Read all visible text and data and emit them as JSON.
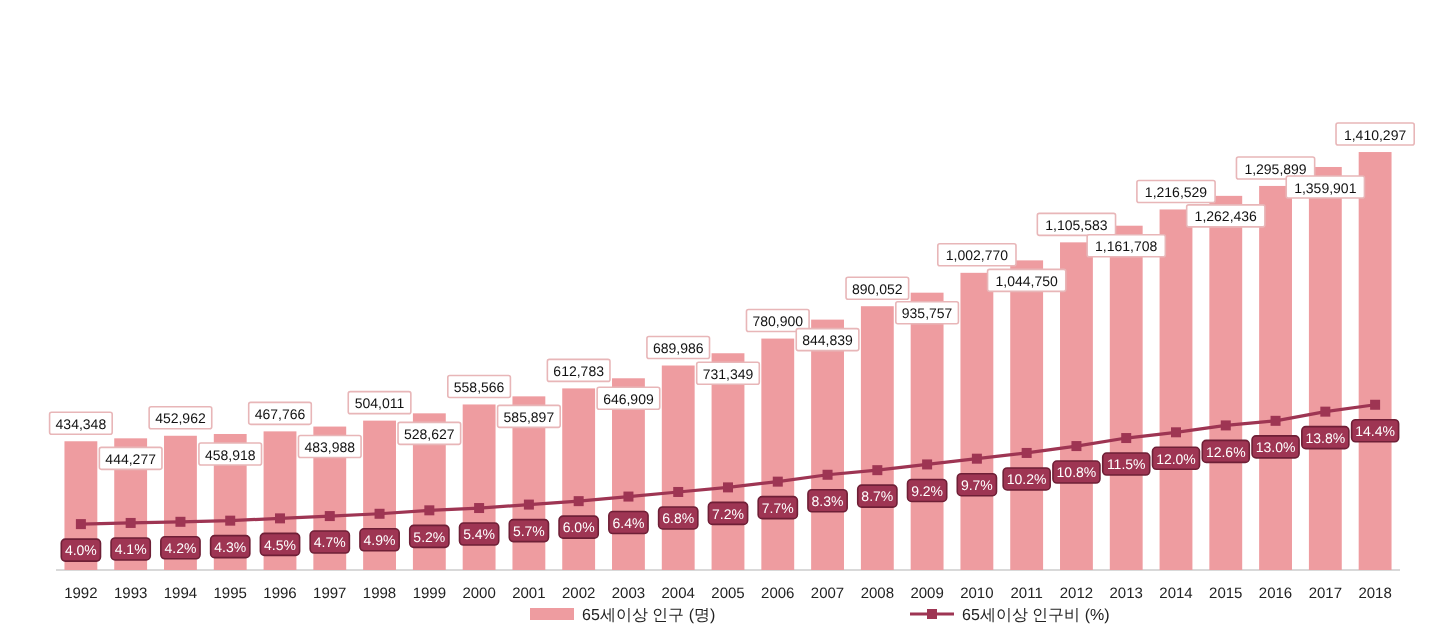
{
  "chart_data": {
    "type": "bar",
    "categories": [
      "1992",
      "1993",
      "1994",
      "1995",
      "1996",
      "1997",
      "1998",
      "1999",
      "2000",
      "2001",
      "2002",
      "2003",
      "2004",
      "2005",
      "2006",
      "2007",
      "2008",
      "2009",
      "2010",
      "2011",
      "2012",
      "2013",
      "2014",
      "2015",
      "2016",
      "2017",
      "2018"
    ],
    "series": [
      {
        "name": "65세이상 인구 (명)",
        "type": "bar",
        "color": "#ee9ca0",
        "values": [
          434348,
          444277,
          452962,
          458918,
          467766,
          483988,
          504011,
          528627,
          558566,
          585897,
          612783,
          646909,
          689986,
          731349,
          780900,
          844839,
          890052,
          935757,
          1002770,
          1044750,
          1105583,
          1161708,
          1216529,
          1262436,
          1295899,
          1359901,
          1410297
        ],
        "value_labels": [
          "434,348",
          "444,277",
          "452,962",
          "458,918",
          "467,766",
          "483,988",
          "504,011",
          "528,627",
          "558,566",
          "585,897",
          "612,783",
          "646,909",
          "689,986",
          "731,349",
          "780,900",
          "844,839",
          "890,052",
          "935,757",
          "1,002,770",
          "1,044,750",
          "1,105,583",
          "1,161,708",
          "1,216,529",
          "1,262,436",
          "1,295,899",
          "1,359,901",
          "1,410,297"
        ]
      },
      {
        "name": "65세이상 인구비 (%)",
        "type": "line",
        "axis": "y2",
        "color": "#9e3553",
        "marker": "square",
        "values": [
          4.0,
          4.1,
          4.2,
          4.3,
          4.5,
          4.7,
          4.9,
          5.2,
          5.4,
          5.7,
          6.0,
          6.4,
          6.8,
          7.2,
          7.7,
          8.3,
          8.7,
          9.2,
          9.7,
          10.2,
          10.8,
          11.5,
          12.0,
          12.6,
          13.0,
          13.8,
          14.4
        ],
        "value_labels": [
          "4.0%",
          "4.1%",
          "4.2%",
          "4.3%",
          "4.5%",
          "4.7%",
          "4.9%",
          "5.2%",
          "5.4%",
          "5.7%",
          "6.0%",
          "6.4%",
          "6.8%",
          "7.2%",
          "7.7%",
          "8.3%",
          "8.7%",
          "9.2%",
          "9.7%",
          "10.2%",
          "10.8%",
          "11.5%",
          "12.0%",
          "12.6%",
          "13.0%",
          "13.8%",
          "14.4%"
        ]
      }
    ],
    "grid": false,
    "legend": "bottom"
  }
}
